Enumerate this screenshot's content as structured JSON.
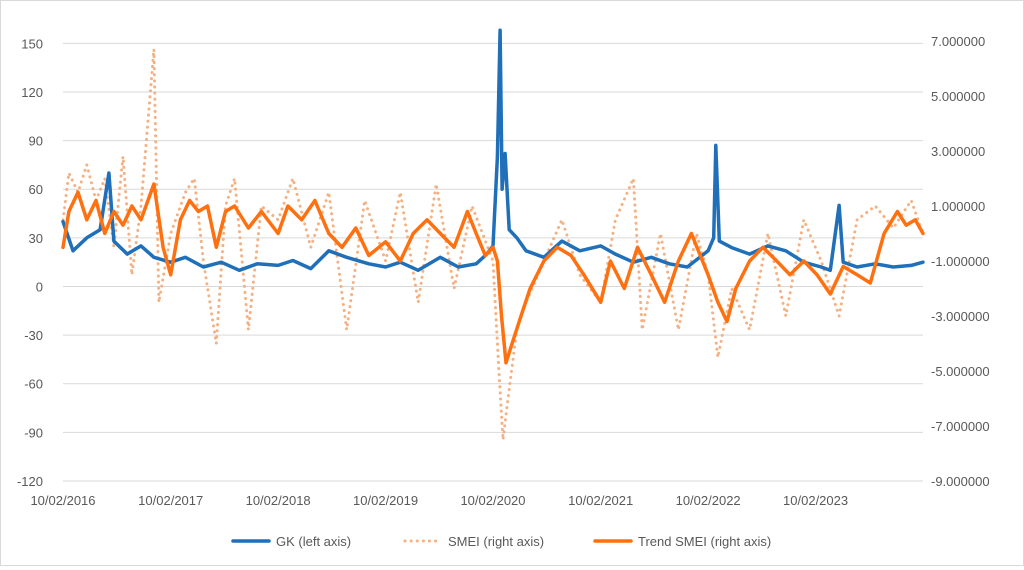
{
  "chart_data": {
    "type": "line",
    "title": "",
    "xlabel": "",
    "y_left": {
      "label": "",
      "range": [
        -120,
        165
      ],
      "ticks": [
        150,
        120,
        90,
        60,
        30,
        0,
        -30,
        -60,
        -90,
        -120
      ]
    },
    "y_right": {
      "label": "",
      "range": [
        -9,
        7.8
      ],
      "ticks": [
        "7.000000",
        "5.000000",
        "3.000000",
        "1.000000",
        "-1.000000",
        "-3.000000",
        "-5.000000",
        "-7.000000",
        "-9.000000"
      ]
    },
    "x_ticks": [
      "10/02/2016",
      "10/02/2017",
      "10/02/2018",
      "10/02/2019",
      "10/02/2020",
      "10/02/2021",
      "10/02/2022",
      "10/02/2023"
    ],
    "x_range": [
      "2016-02-10",
      "2024-02-10"
    ],
    "legend_position": "bottom",
    "gridlines": "horizontal",
    "series": [
      {
        "name": "GK (left axis)",
        "axis": "left",
        "style": "solid",
        "color": "#1f6fb9",
        "points": [
          [
            "2016-02-10",
            40
          ],
          [
            "2016-03-15",
            22
          ],
          [
            "2016-05-01",
            30
          ],
          [
            "2016-06-15",
            35
          ],
          [
            "2016-07-15",
            70
          ],
          [
            "2016-08-01",
            28
          ],
          [
            "2016-09-15",
            20
          ],
          [
            "2016-11-01",
            25
          ],
          [
            "2016-12-15",
            18
          ],
          [
            "2017-02-10",
            15
          ],
          [
            "2017-04-01",
            18
          ],
          [
            "2017-06-01",
            12
          ],
          [
            "2017-08-01",
            15
          ],
          [
            "2017-10-01",
            10
          ],
          [
            "2017-12-01",
            14
          ],
          [
            "2018-02-10",
            13
          ],
          [
            "2018-04-01",
            16
          ],
          [
            "2018-06-01",
            11
          ],
          [
            "2018-08-01",
            22
          ],
          [
            "2018-10-01",
            18
          ],
          [
            "2018-12-15",
            14
          ],
          [
            "2019-02-10",
            12
          ],
          [
            "2019-04-01",
            15
          ],
          [
            "2019-06-01",
            10
          ],
          [
            "2019-08-15",
            18
          ],
          [
            "2019-10-15",
            12
          ],
          [
            "2019-12-15",
            14
          ],
          [
            "2020-01-20",
            20
          ],
          [
            "2020-02-10",
            25
          ],
          [
            "2020-02-25",
            80
          ],
          [
            "2020-03-05",
            158
          ],
          [
            "2020-03-12",
            60
          ],
          [
            "2020-03-22",
            82
          ],
          [
            "2020-04-05",
            35
          ],
          [
            "2020-05-01",
            30
          ],
          [
            "2020-06-01",
            22
          ],
          [
            "2020-08-01",
            18
          ],
          [
            "2020-10-01",
            28
          ],
          [
            "2020-12-01",
            22
          ],
          [
            "2021-02-10",
            25
          ],
          [
            "2021-04-01",
            20
          ],
          [
            "2021-06-01",
            15
          ],
          [
            "2021-08-01",
            18
          ],
          [
            "2021-10-01",
            14
          ],
          [
            "2021-12-01",
            12
          ],
          [
            "2022-02-10",
            22
          ],
          [
            "2022-03-01",
            30
          ],
          [
            "2022-03-08",
            87
          ],
          [
            "2022-03-20",
            28
          ],
          [
            "2022-05-01",
            24
          ],
          [
            "2022-07-01",
            20
          ],
          [
            "2022-09-01",
            25
          ],
          [
            "2022-11-01",
            22
          ],
          [
            "2023-01-01",
            15
          ],
          [
            "2023-03-01",
            12
          ],
          [
            "2023-04-01",
            10
          ],
          [
            "2023-05-01",
            50
          ],
          [
            "2023-05-15",
            15
          ],
          [
            "2023-07-01",
            12
          ],
          [
            "2023-09-01",
            14
          ],
          [
            "2023-11-01",
            12
          ],
          [
            "2024-01-01",
            13
          ],
          [
            "2024-02-10",
            15
          ]
        ]
      },
      {
        "name": "SMEI (right axis)",
        "axis": "right",
        "style": "dotted",
        "color": "#f4b183",
        "points": [
          [
            "2016-02-10",
            0.5
          ],
          [
            "2016-03-01",
            2.2
          ],
          [
            "2016-04-01",
            1.5
          ],
          [
            "2016-05-01",
            2.5
          ],
          [
            "2016-06-01",
            1.2
          ],
          [
            "2016-07-01",
            2.0
          ],
          [
            "2016-08-01",
            -0.5
          ],
          [
            "2016-09-01",
            2.8
          ],
          [
            "2016-10-01",
            -1.5
          ],
          [
            "2016-11-01",
            1.0
          ],
          [
            "2016-12-15",
            6.7
          ],
          [
            "2017-01-01",
            -2.5
          ],
          [
            "2017-02-10",
            0.0
          ],
          [
            "2017-04-01",
            1.5
          ],
          [
            "2017-05-01",
            2.0
          ],
          [
            "2017-06-01",
            -1.0
          ],
          [
            "2017-07-15",
            -4.0
          ],
          [
            "2017-08-15",
            1.0
          ],
          [
            "2017-09-15",
            2.0
          ],
          [
            "2017-11-01",
            -3.5
          ],
          [
            "2017-12-15",
            1.0
          ],
          [
            "2018-02-10",
            0.5
          ],
          [
            "2018-04-01",
            2.0
          ],
          [
            "2018-06-01",
            -0.5
          ],
          [
            "2018-08-01",
            1.5
          ],
          [
            "2018-10-01",
            -3.5
          ],
          [
            "2018-12-01",
            1.2
          ],
          [
            "2019-02-10",
            -1.0
          ],
          [
            "2019-04-01",
            1.5
          ],
          [
            "2019-06-01",
            -2.5
          ],
          [
            "2019-08-01",
            1.8
          ],
          [
            "2019-10-01",
            -2.0
          ],
          [
            "2019-12-01",
            1.0
          ],
          [
            "2020-02-10",
            -1.0
          ],
          [
            "2020-03-01",
            -5.0
          ],
          [
            "2020-03-15",
            -7.5
          ],
          [
            "2020-04-01",
            -6.0
          ],
          [
            "2020-05-01",
            -3.5
          ],
          [
            "2020-06-01",
            -2.5
          ],
          [
            "2020-08-01",
            -1.0
          ],
          [
            "2020-10-01",
            0.5
          ],
          [
            "2020-12-01",
            -1.5
          ],
          [
            "2021-02-10",
            -2.5
          ],
          [
            "2021-04-01",
            0.5
          ],
          [
            "2021-06-01",
            2.0
          ],
          [
            "2021-07-01",
            -3.5
          ],
          [
            "2021-09-01",
            0.0
          ],
          [
            "2021-11-01",
            -3.5
          ],
          [
            "2022-01-01",
            0.0
          ],
          [
            "2022-02-10",
            -1.5
          ],
          [
            "2022-03-15",
            -4.5
          ],
          [
            "2022-05-01",
            -2.0
          ],
          [
            "2022-07-01",
            -3.5
          ],
          [
            "2022-09-01",
            0.0
          ],
          [
            "2022-11-01",
            -3.0
          ],
          [
            "2023-01-01",
            0.5
          ],
          [
            "2023-03-01",
            -1.0
          ],
          [
            "2023-05-01",
            -3.0
          ],
          [
            "2023-07-01",
            0.5
          ],
          [
            "2023-09-01",
            1.0
          ],
          [
            "2023-11-01",
            0.2
          ],
          [
            "2024-01-01",
            1.2
          ],
          [
            "2024-02-10",
            0.0
          ]
        ]
      },
      {
        "name": "Trend SMEI (right axis)",
        "axis": "right",
        "style": "solid",
        "color": "#ff7010",
        "points": [
          [
            "2016-02-10",
            -0.5
          ],
          [
            "2016-03-01",
            0.8
          ],
          [
            "2016-04-01",
            1.5
          ],
          [
            "2016-05-01",
            0.5
          ],
          [
            "2016-06-01",
            1.2
          ],
          [
            "2016-07-01",
            0.0
          ],
          [
            "2016-08-01",
            0.8
          ],
          [
            "2016-09-01",
            0.3
          ],
          [
            "2016-10-01",
            1.0
          ],
          [
            "2016-11-01",
            0.5
          ],
          [
            "2016-12-15",
            1.8
          ],
          [
            "2017-01-15",
            -0.5
          ],
          [
            "2017-02-10",
            -1.5
          ],
          [
            "2017-03-15",
            0.5
          ],
          [
            "2017-04-15",
            1.2
          ],
          [
            "2017-05-15",
            0.8
          ],
          [
            "2017-06-15",
            1.0
          ],
          [
            "2017-07-15",
            -0.5
          ],
          [
            "2017-08-15",
            0.8
          ],
          [
            "2017-09-15",
            1.0
          ],
          [
            "2017-11-01",
            0.2
          ],
          [
            "2017-12-15",
            0.8
          ],
          [
            "2018-02-10",
            0.0
          ],
          [
            "2018-03-15",
            1.0
          ],
          [
            "2018-05-01",
            0.5
          ],
          [
            "2018-06-15",
            1.2
          ],
          [
            "2018-08-01",
            0.0
          ],
          [
            "2018-09-15",
            -0.5
          ],
          [
            "2018-11-01",
            0.2
          ],
          [
            "2018-12-15",
            -0.8
          ],
          [
            "2019-02-10",
            -0.3
          ],
          [
            "2019-04-01",
            -1.0
          ],
          [
            "2019-05-15",
            0.0
          ],
          [
            "2019-07-01",
            0.5
          ],
          [
            "2019-08-15",
            0.0
          ],
          [
            "2019-10-01",
            -0.5
          ],
          [
            "2019-11-15",
            0.8
          ],
          [
            "2019-12-15",
            0.0
          ],
          [
            "2020-01-15",
            -0.8
          ],
          [
            "2020-02-10",
            -0.5
          ],
          [
            "2020-02-25",
            -1.0
          ],
          [
            "2020-03-10",
            -3.0
          ],
          [
            "2020-03-25",
            -4.7
          ],
          [
            "2020-04-15",
            -4.0
          ],
          [
            "2020-05-15",
            -3.0
          ],
          [
            "2020-06-15",
            -2.0
          ],
          [
            "2020-08-01",
            -1.0
          ],
          [
            "2020-09-15",
            -0.5
          ],
          [
            "2020-11-01",
            -0.8
          ],
          [
            "2020-12-15",
            -1.5
          ],
          [
            "2021-02-10",
            -2.5
          ],
          [
            "2021-03-15",
            -1.0
          ],
          [
            "2021-05-01",
            -2.0
          ],
          [
            "2021-06-15",
            -0.5
          ],
          [
            "2021-08-01",
            -1.5
          ],
          [
            "2021-09-15",
            -2.5
          ],
          [
            "2021-11-01",
            -1.0
          ],
          [
            "2021-12-15",
            0.0
          ],
          [
            "2022-02-10",
            -1.5
          ],
          [
            "2022-03-15",
            -2.5
          ],
          [
            "2022-04-15",
            -3.2
          ],
          [
            "2022-05-15",
            -2.0
          ],
          [
            "2022-07-01",
            -1.0
          ],
          [
            "2022-08-15",
            -0.5
          ],
          [
            "2022-10-01",
            -1.0
          ],
          [
            "2022-11-15",
            -1.5
          ],
          [
            "2023-01-01",
            -1.0
          ],
          [
            "2023-02-15",
            -1.5
          ],
          [
            "2023-04-01",
            -2.2
          ],
          [
            "2023-05-15",
            -1.2
          ],
          [
            "2023-07-01",
            -1.5
          ],
          [
            "2023-08-15",
            -1.8
          ],
          [
            "2023-10-01",
            0.0
          ],
          [
            "2023-11-15",
            0.8
          ],
          [
            "2023-12-15",
            0.3
          ],
          [
            "2024-01-15",
            0.5
          ],
          [
            "2024-02-10",
            0.0
          ]
        ]
      }
    ]
  }
}
